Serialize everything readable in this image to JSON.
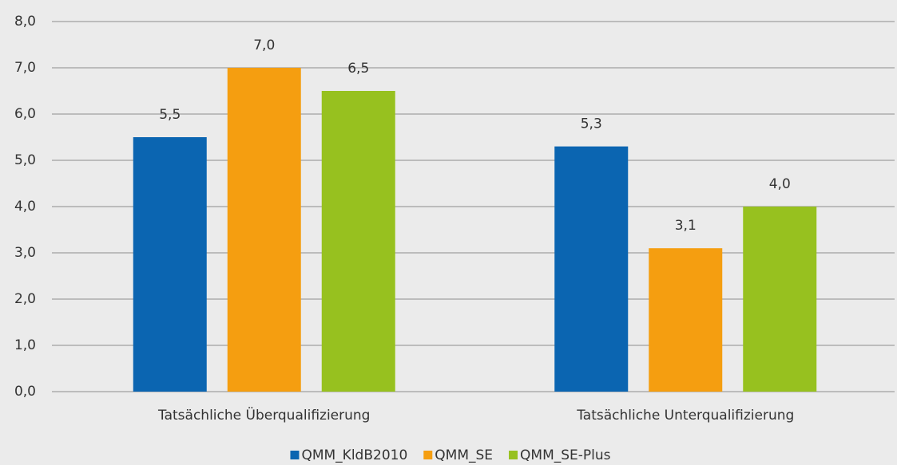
{
  "chart_data": {
    "type": "bar",
    "categories": [
      "Tatsächliche Überqualifizierung",
      "Tatsächliche Unterqualifizierung"
    ],
    "series": [
      {
        "name": "QMM_KldB2010",
        "color": "#0b65b1",
        "values": [
          5.5,
          5.3
        ],
        "value_labels": [
          "5,5",
          "5,3"
        ]
      },
      {
        "name": "QMM_SE",
        "color": "#f59e10",
        "values": [
          7.0,
          3.1
        ],
        "value_labels": [
          "7,0",
          "3,1"
        ]
      },
      {
        "name": "QMM_SE-Plus",
        "color": "#97c11f",
        "values": [
          6.5,
          4.0
        ],
        "value_labels": [
          "6,5",
          "4,0"
        ]
      }
    ],
    "ylim": [
      0,
      8
    ],
    "yticks": [
      {
        "value": 0,
        "label": "0,0"
      },
      {
        "value": 1,
        "label": "1,0"
      },
      {
        "value": 2,
        "label": "2,0"
      },
      {
        "value": 3,
        "label": "3,0"
      },
      {
        "value": 4,
        "label": "4,0"
      },
      {
        "value": 5,
        "label": "5,0"
      },
      {
        "value": 6,
        "label": "6,0"
      },
      {
        "value": 7,
        "label": "7,0"
      },
      {
        "value": 8,
        "label": "8,0"
      }
    ],
    "grid": true,
    "legend": "bottom"
  }
}
